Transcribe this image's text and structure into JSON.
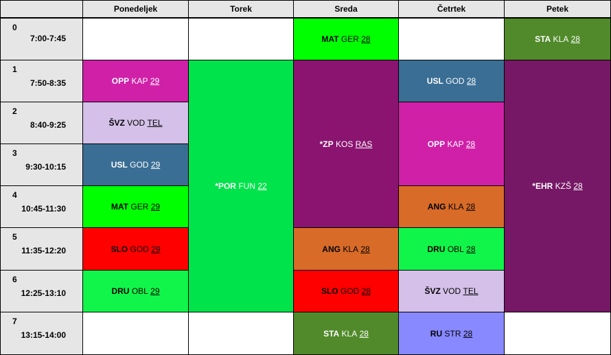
{
  "corner": "",
  "days": [
    "Ponedeljek",
    "Torek",
    "Sreda",
    "Četrtek",
    "Petek"
  ],
  "periods": [
    {
      "num": "0",
      "time": "7:00-7:45"
    },
    {
      "num": "1",
      "time": "7:50-8:35"
    },
    {
      "num": "2",
      "time": "8:40-9:25"
    },
    {
      "num": "3",
      "time": "9:30-10:15"
    },
    {
      "num": "4",
      "time": "10:45-11:30"
    },
    {
      "num": "5",
      "time": "11:35-12:20"
    },
    {
      "num": "6",
      "time": "12:25-13:10"
    },
    {
      "num": "7",
      "time": "13:15-14:00"
    }
  ],
  "colors": {
    "header_bg": "#e6e6e6",
    "mat": "#00ff00",
    "sta": "#518a2a",
    "opp": "#d020a8",
    "svz": "#d4c0e8",
    "usl": "#3a6e94",
    "slo": "#ff0000",
    "dru": "#11f54b",
    "por": "#00e34a",
    "zp": "#8a1470",
    "ehr": "#761866",
    "ang": "#d86b28",
    "ru": "#8888ff"
  },
  "lessons": [
    {
      "id": "mon-opp",
      "day": 0,
      "start": 1,
      "span": 1,
      "subject": "OPP",
      "teacher": "KAP",
      "room": "29",
      "color": "#d020a8",
      "text": "#ffffff"
    },
    {
      "id": "mon-svz",
      "day": 0,
      "start": 2,
      "span": 1,
      "subject": "ŠVZ",
      "teacher": "VOD",
      "room": "TEL",
      "color": "#d4c0e8",
      "text": "#000000"
    },
    {
      "id": "mon-usl",
      "day": 0,
      "start": 3,
      "span": 1,
      "subject": "USL",
      "teacher": "GOD",
      "room": "29",
      "color": "#3a6e94",
      "text": "#ffffff"
    },
    {
      "id": "mon-mat",
      "day": 0,
      "start": 4,
      "span": 1,
      "subject": "MAT",
      "teacher": "GER",
      "room": "29",
      "color": "#00ff00",
      "text": "#000000"
    },
    {
      "id": "mon-slo",
      "day": 0,
      "start": 5,
      "span": 1,
      "subject": "SLO",
      "teacher": "GOD",
      "room": "29",
      "color": "#ff0000",
      "text": "#000000"
    },
    {
      "id": "mon-dru",
      "day": 0,
      "start": 6,
      "span": 1,
      "subject": "DRU",
      "teacher": "OBL",
      "room": "29",
      "color": "#11f54b",
      "text": "#000000"
    },
    {
      "id": "tue-por",
      "day": 1,
      "start": 1,
      "span": 6,
      "subject": "*POR",
      "teacher": "FUN",
      "room": "22",
      "color": "#00e34a",
      "text": "#ffffff"
    },
    {
      "id": "wed-mat",
      "day": 2,
      "start": 0,
      "span": 1,
      "subject": "MAT",
      "teacher": "GER",
      "room": "28",
      "color": "#00ff00",
      "text": "#000000"
    },
    {
      "id": "wed-zp",
      "day": 2,
      "start": 1,
      "span": 4,
      "subject": "*ZP",
      "teacher": "KOS",
      "room": "RAS",
      "color": "#8a1470",
      "text": "#ffffff"
    },
    {
      "id": "wed-ang",
      "day": 2,
      "start": 5,
      "span": 1,
      "subject": "ANG",
      "teacher": "KLA",
      "room": "28",
      "color": "#d86b28",
      "text": "#000000"
    },
    {
      "id": "wed-slo",
      "day": 2,
      "start": 6,
      "span": 1,
      "subject": "SLO",
      "teacher": "GOD",
      "room": "28",
      "color": "#ff0000",
      "text": "#000000"
    },
    {
      "id": "wed-sta",
      "day": 2,
      "start": 7,
      "span": 1,
      "subject": "STA",
      "teacher": "KLA",
      "room": "28",
      "color": "#518a2a",
      "text": "#ffffff"
    },
    {
      "id": "thu-usl",
      "day": 3,
      "start": 1,
      "span": 1,
      "subject": "USL",
      "teacher": "GOD",
      "room": "28",
      "color": "#3a6e94",
      "text": "#ffffff"
    },
    {
      "id": "thu-opp",
      "day": 3,
      "start": 2,
      "span": 2,
      "subject": "OPP",
      "teacher": "KAP",
      "room": "28",
      "color": "#d020a8",
      "text": "#ffffff"
    },
    {
      "id": "thu-ang",
      "day": 3,
      "start": 4,
      "span": 1,
      "subject": "ANG",
      "teacher": "KLA",
      "room": "28",
      "color": "#d86b28",
      "text": "#000000"
    },
    {
      "id": "thu-dru",
      "day": 3,
      "start": 5,
      "span": 1,
      "subject": "DRU",
      "teacher": "OBL",
      "room": "28",
      "color": "#11f54b",
      "text": "#000000"
    },
    {
      "id": "thu-svz",
      "day": 3,
      "start": 6,
      "span": 1,
      "subject": "ŠVZ",
      "teacher": "VOD",
      "room": "TEL",
      "color": "#d4c0e8",
      "text": "#000000"
    },
    {
      "id": "thu-ru",
      "day": 3,
      "start": 7,
      "span": 1,
      "subject": "RU",
      "teacher": "STR",
      "room": "28",
      "color": "#8888ff",
      "text": "#000000"
    },
    {
      "id": "fri-sta",
      "day": 4,
      "start": 0,
      "span": 1,
      "subject": "STA",
      "teacher": "KLA",
      "room": "28",
      "color": "#518a2a",
      "text": "#ffffff"
    },
    {
      "id": "fri-ehr",
      "day": 4,
      "start": 1,
      "span": 6,
      "subject": "*EHR",
      "teacher": "KZŠ",
      "room": "28",
      "color": "#761866",
      "text": "#ffffff"
    }
  ]
}
